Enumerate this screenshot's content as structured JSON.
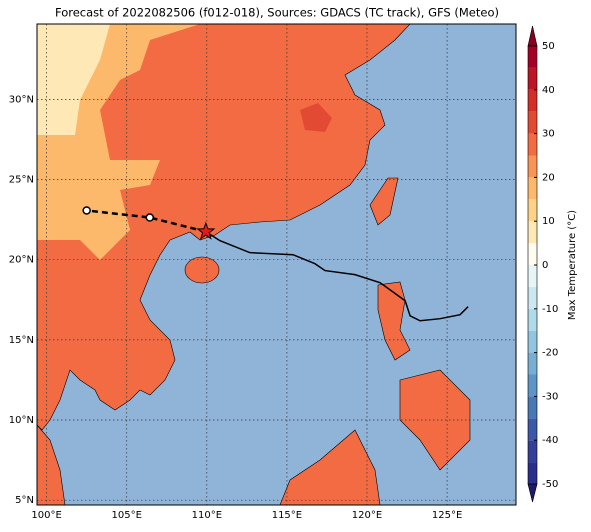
{
  "title": "Forecast of 2022082506 (f012-018), Sources: GDACS (TC track), GFS (Meteo)",
  "map": {
    "xlim": [
      99.4,
      129.3
    ],
    "ylim": [
      4.7,
      34.7
    ],
    "xticks": [
      {
        "value": 100,
        "label": "100°E"
      },
      {
        "value": 105,
        "label": "105°E"
      },
      {
        "value": 110,
        "label": "110°E"
      },
      {
        "value": 115,
        "label": "115°E"
      },
      {
        "value": 120,
        "label": "120°E"
      },
      {
        "value": 125,
        "label": "125°E"
      }
    ],
    "yticks": [
      {
        "value": 5,
        "label": "5°N"
      },
      {
        "value": 10,
        "label": "10°N"
      },
      {
        "value": 15,
        "label": "15°N"
      },
      {
        "value": 20,
        "label": "20°N"
      },
      {
        "value": 25,
        "label": "25°N"
      },
      {
        "value": 30,
        "label": "30°N"
      }
    ],
    "grid": true
  },
  "track": {
    "lon": [
      109.94,
      110.81,
      112.69,
      115.38,
      116.75,
      117.38,
      119.25,
      120.81,
      122.38,
      122.69,
      123.31,
      124.56,
      125.81,
      126.31
    ],
    "lat": [
      21.75,
      21.19,
      20.44,
      20.31,
      19.75,
      19.32,
      19.07,
      18.57,
      17.44,
      16.5,
      16.19,
      16.32,
      16.57,
      17.07
    ]
  },
  "forecast": {
    "lon": [
      109.94,
      106.44,
      102.5
    ],
    "lat": [
      21.75,
      22.63,
      23.07
    ]
  },
  "colorbar": {
    "label": "Max Temperature (°C)",
    "lim": [
      -50,
      50
    ],
    "ticks": [
      -50,
      -40,
      -30,
      -20,
      -10,
      0,
      10,
      20,
      30,
      40,
      50
    ],
    "levels": [
      -50,
      -45,
      -40,
      -35,
      -30,
      -25,
      -20,
      -15,
      -10,
      -5,
      0,
      5,
      10,
      15,
      20,
      25,
      30,
      35,
      40,
      45,
      50
    ],
    "colors": [
      "#2b2f8c",
      "#343f98",
      "#3c59a7",
      "#4a78b6",
      "#5f94c6",
      "#78aed4",
      "#93c5e0",
      "#afdaea",
      "#cbe8f1",
      "#e6f5f5",
      "#fffcef",
      "#fee8b6",
      "#fed389",
      "#fdb96b",
      "#f99456",
      "#f26b43",
      "#e34a33",
      "#d42f27",
      "#bb1526",
      "#a50026"
    ],
    "under": "#1f1a6e",
    "over": "#8b0021"
  }
}
